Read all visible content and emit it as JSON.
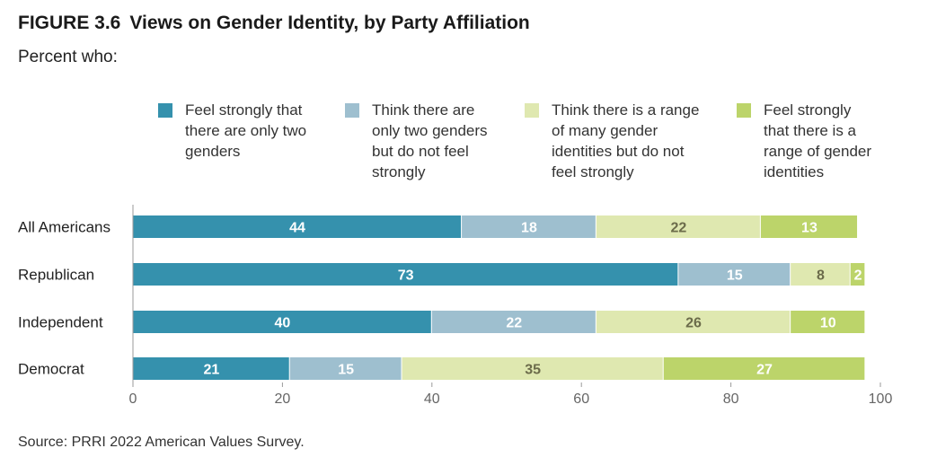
{
  "figure_number": "FIGURE 3.6",
  "title": "Views on Gender Identity, by Party Affiliation",
  "subtitle": "Percent who:",
  "source": "Source: PRRI 2022 American Values Survey.",
  "chart_data": {
    "type": "bar",
    "orientation": "horizontal",
    "stacked": true,
    "categories": [
      "All Americans",
      "Republican",
      "Independent",
      "Democrat"
    ],
    "series": [
      {
        "name": "Feel strongly that there are only two genders",
        "color": "#3591ad",
        "label_color": "#ffffff",
        "values": [
          44,
          73,
          40,
          21
        ]
      },
      {
        "name": "Think there are only two genders but do not feel strongly",
        "color": "#9ebfcf",
        "label_color": "#ffffff",
        "values": [
          18,
          15,
          22,
          15
        ]
      },
      {
        "name": "Think there is a range of many gender identities but do not feel strongly",
        "color": "#dfe8b0",
        "label_color": "#6b6b4a",
        "values": [
          22,
          8,
          26,
          35
        ]
      },
      {
        "name": "Feel strongly that there is a range of gender identities",
        "color": "#bcd46a",
        "label_color": "#ffffff",
        "values": [
          13,
          2,
          10,
          27
        ]
      }
    ],
    "legend_lines": [
      [
        "Feel strongly that",
        "there are only two",
        "genders"
      ],
      [
        "Think there are",
        "only two genders",
        "but do not feel",
        "strongly"
      ],
      [
        "Think there is a range",
        "of many gender",
        "identities but do not",
        "feel strongly"
      ],
      [
        "Feel strongly",
        "that there is a",
        "range of gender",
        "identities"
      ]
    ],
    "xlim": [
      0,
      100
    ],
    "xticks": [
      0,
      20,
      40,
      60,
      80,
      100
    ],
    "legend_position": "top",
    "grid": false
  }
}
